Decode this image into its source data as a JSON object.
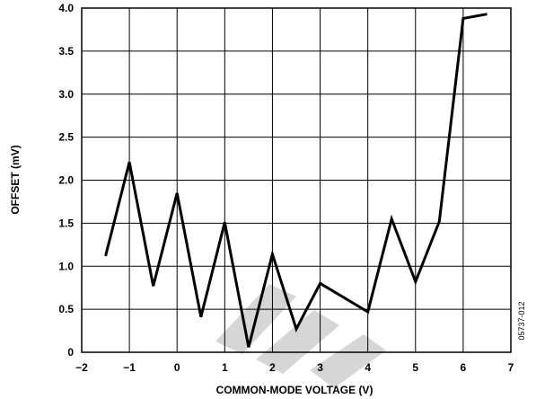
{
  "chart_data": {
    "type": "line",
    "xlabel": "COMMON-MODE VOLTAGE (V)",
    "ylabel": "OFFSET (mV)",
    "xlim": [
      -2,
      7
    ],
    "ylim": [
      0,
      4.0
    ],
    "x_ticks": [
      "−2",
      "−1",
      "0",
      "1",
      "2",
      "3",
      "4",
      "5",
      "6",
      "7"
    ],
    "y_ticks": [
      "0",
      "0.5",
      "1.0",
      "1.5",
      "2.0",
      "2.5",
      "3.0",
      "3.5",
      "4.0"
    ],
    "grid": true,
    "series": [
      {
        "x": [
          -1.5,
          -1.0,
          -0.5,
          0.0,
          0.5,
          1.0,
          1.5,
          2.0,
          2.5,
          3.0,
          4.0,
          4.5,
          5.0,
          5.5,
          6.0,
          6.5
        ],
        "y": [
          1.12,
          2.21,
          0.77,
          1.85,
          0.41,
          1.51,
          0.06,
          1.14,
          0.27,
          0.8,
          0.47,
          1.55,
          0.82,
          1.52,
          3.88,
          3.93
        ]
      }
    ]
  },
  "figure_id": "05737-012",
  "colors": {
    "line": "#000000",
    "grid": "#000000",
    "watermark": "#cfcfcf"
  }
}
